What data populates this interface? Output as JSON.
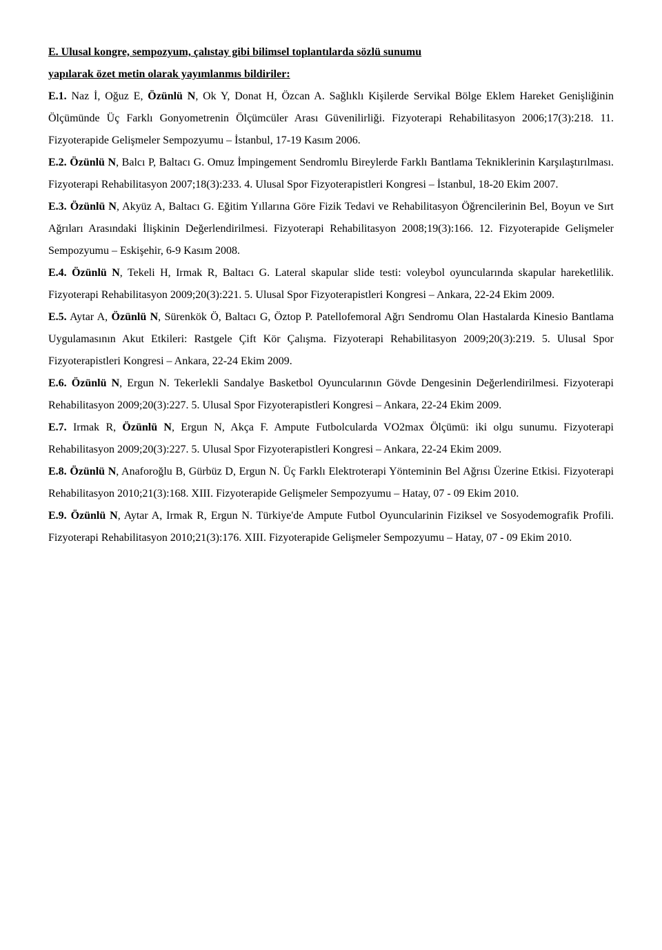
{
  "heading": {
    "line1": "E. Ulusal kongre, sempozyum, çalıstay gibi bilimsel toplantılarda sözlü sunumu",
    "line2": "yapılarak özet metin olarak yayımlanmıs bildiriler:"
  },
  "entries": [
    {
      "label": "E.1.",
      "authors_pre": " Naz İ, Oğuz E, ",
      "author_bold": "Özünlü N",
      "authors_post": ", Ok Y, Donat H, Özcan A. Sağlıklı Kişilerde Servikal Bölge Eklem Hareket Genişliğinin Ölçümünde Üç Farklı Gonyometrenin Ölçümcüler Arası Güvenilirliği. Fizyoterapi Rehabilitasyon 2006;17(3):218. 11. Fizyoterapide Gelişmeler Sempozyumu – İstanbul, 17-19 Kasım 2006."
    },
    {
      "label": "E.2.",
      "authors_pre": " ",
      "author_bold": "Özünlü N",
      "authors_post": ", Balcı P, Baltacı G. Omuz İmpingement Sendromlu Bireylerde Farklı Bantlama Tekniklerinin Karşılaştırılması. Fizyoterapi Rehabilitasyon 2007;18(3):233. 4. Ulusal Spor Fizyoterapistleri Kongresi – İstanbul, 18-20 Ekim 2007."
    },
    {
      "label": "E.3.",
      "authors_pre": " ",
      "author_bold": "Özünlü N",
      "authors_post": ", Akyüz A, Baltacı G. Eğitim Yıllarına Göre Fizik Tedavi ve Rehabilitasyon Öğrencilerinin Bel, Boyun ve Sırt Ağrıları Arasındaki İlişkinin Değerlendirilmesi. Fizyoterapi Rehabilitasyon 2008;19(3):166. 12. Fizyoterapide Gelişmeler Sempozyumu – Eskişehir, 6-9 Kasım 2008."
    },
    {
      "label": "E.4.",
      "authors_pre": " ",
      "author_bold": "Özünlü N",
      "authors_post": ", Tekeli H, Irmak R, Baltacı G. Lateral skapular slide testi: voleybol oyuncularında skapular hareketlilik. Fizyoterapi Rehabilitasyon 2009;20(3):221. 5. Ulusal Spor Fizyoterapistleri Kongresi – Ankara, 22-24 Ekim 2009."
    },
    {
      "label": "E.5.",
      "authors_pre": " Aytar A, ",
      "author_bold": "Özünlü N",
      "authors_post": ", Sürenkök Ö, Baltacı G, Öztop P. Patellofemoral Ağrı Sendromu Olan Hastalarda Kinesio Bantlama Uygulamasının Akut Etkileri: Rastgele Çift Kör Çalışma. Fizyoterapi Rehabilitasyon 2009;20(3):219. 5. Ulusal Spor Fizyoterapistleri Kongresi – Ankara, 22-24 Ekim 2009."
    },
    {
      "label": "E.6.",
      "authors_pre": " ",
      "author_bold": "Özünlü N",
      "authors_post": ", Ergun N. Tekerlekli Sandalye Basketbol Oyuncularının Gövde Dengesinin Değerlendirilmesi. Fizyoterapi Rehabilitasyon 2009;20(3):227. 5. Ulusal Spor Fizyoterapistleri Kongresi – Ankara, 22-24 Ekim 2009."
    },
    {
      "label": "E.7.",
      "authors_pre": " Irmak R, ",
      "author_bold": "Özünlü N",
      "authors_post": ", Ergun N, Akça F. Ampute Futbolcularda VO2max Ölçümü: iki olgu sunumu. Fizyoterapi Rehabilitasyon 2009;20(3):227. 5. Ulusal Spor Fizyoterapistleri Kongresi – Ankara, 22-24 Ekim 2009."
    },
    {
      "label": "E.8.",
      "authors_pre": " ",
      "author_bold": "Özünlü N",
      "authors_post": ", Anaforoğlu B, Gürbüz D, Ergun N. Üç Farklı Elektroterapi Yönteminin Bel Ağrısı Üzerine Etkisi. Fizyoterapi Rehabilitasyon 2010;21(3):168. XIII. Fizyoterapide Gelişmeler Sempozyumu – Hatay, 07 - 09 Ekim 2010."
    },
    {
      "label": "E.9.",
      "authors_pre": " ",
      "author_bold": "Özünlü N",
      "authors_post": ", Aytar A, Irmak R, Ergun N. Türkiye'de Ampute Futbol Oyuncularinin Fiziksel ve Sosyodemografik Profili. Fizyoterapi Rehabilitasyon 2010;21(3):176. XIII. Fizyoterapide Gelişmeler Sempozyumu – Hatay, 07 - 09 Ekim 2010."
    }
  ]
}
